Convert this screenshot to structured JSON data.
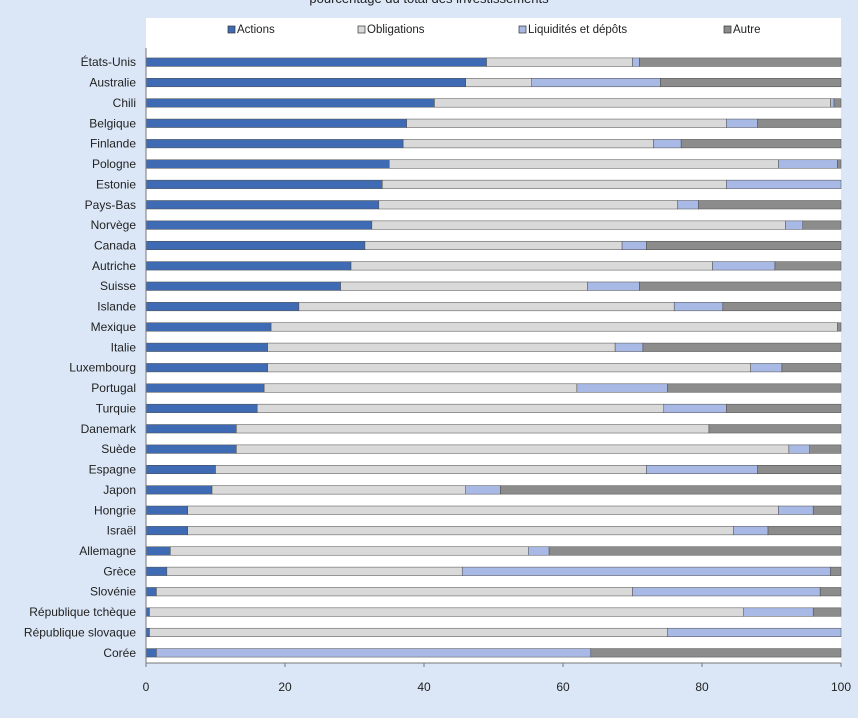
{
  "chart_data": {
    "type": "bar",
    "orientation": "horizontal",
    "stacked": true,
    "title": "pourcentage du total des investissements",
    "categories": [
      "États-Unis",
      "Australie",
      "Chili",
      "Belgique",
      "Finlande",
      "Pologne",
      "Estonie",
      "Pays-Bas",
      "Norvège",
      "Canada",
      "Autriche",
      "Suisse",
      "Islande",
      "Mexique",
      "Italie",
      "Luxembourg",
      "Portugal",
      "Turquie",
      "Danemark",
      "Suède",
      "Espagne",
      "Japon",
      "Hongrie",
      "Israël",
      "Allemagne",
      "Grèce",
      "Slovénie",
      "République tchèque",
      "République slovaque",
      "Corée"
    ],
    "series": [
      {
        "name": "Actions",
        "color": "#3f6bb5",
        "values": [
          49,
          46,
          41.5,
          37.5,
          37,
          35,
          34,
          33.5,
          32.5,
          31.5,
          29.5,
          28,
          22,
          18,
          17.5,
          17.5,
          17,
          16,
          13,
          13,
          10,
          9.5,
          6,
          6,
          3.5,
          3,
          1.5,
          0.5,
          0.5,
          1.5
        ]
      },
      {
        "name": "Obligations",
        "color": "#d9d9d9",
        "values": [
          21,
          9.5,
          57,
          46,
          36,
          56,
          49.5,
          43,
          59.5,
          37,
          52,
          35.5,
          54,
          81.5,
          50,
          69.5,
          45,
          58.5,
          68,
          79.5,
          62,
          36.5,
          85,
          78.5,
          51.5,
          42.5,
          68.5,
          85.5,
          74.5,
          0
        ]
      },
      {
        "name": "Liquidités et dépôts",
        "color": "#a9b9e6",
        "values": [
          1,
          18.5,
          0.5,
          4.5,
          4,
          8.5,
          16.5,
          3,
          2.5,
          3.5,
          9,
          7.5,
          7,
          0,
          4,
          4.5,
          13,
          9,
          0,
          3,
          16,
          5,
          5,
          5,
          3,
          53,
          27,
          10,
          25,
          62.5
        ]
      },
      {
        "name": "Autre",
        "color": "#8c8c8c",
        "values": [
          29,
          26,
          1,
          12,
          23,
          0.5,
          0,
          20.5,
          5.5,
          28,
          9.5,
          29,
          17,
          0.5,
          28.5,
          8.5,
          25,
          16.5,
          19,
          4.5,
          12,
          49,
          4,
          10.5,
          42,
          1.5,
          3,
          4,
          0,
          36
        ]
      }
    ],
    "xlabel": "",
    "ylabel": "",
    "xlim": [
      0,
      100
    ],
    "xticks": [
      0,
      20,
      40,
      60,
      80,
      100
    ],
    "legend": "top",
    "grid": false
  }
}
